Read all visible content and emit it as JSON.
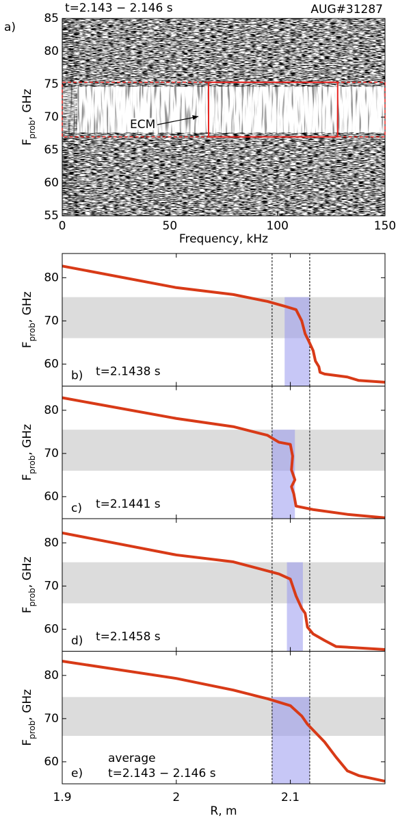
{
  "chart_data": [
    {
      "type": "spectrogram",
      "label": "a)",
      "title": "t=2.143 − 2.146 s",
      "subtitle": "AUG#31287",
      "annotation": "ECM",
      "xlabel": "Frequency, kHz",
      "ylabel": {
        "text": "F",
        "sub": "prob",
        "tail": ", GHz"
      },
      "xlim": [
        0,
        150
      ],
      "ylim": [
        55,
        85
      ],
      "xticks": [
        0,
        50,
        100,
        150
      ],
      "yticks": [
        55,
        60,
        65,
        70,
        75,
        80,
        85
      ],
      "ecm_band": [
        67,
        75.3
      ],
      "ecm_box": {
        "x": [
          68,
          128
        ],
        "y": [
          67,
          75.3
        ]
      },
      "color": "#e8231f"
    },
    {
      "type": "line",
      "label": "b)",
      "annotations": [
        "t=2.1438 s"
      ],
      "ylabel": {
        "text": "F",
        "sub": "prob",
        "tail": ", GHz"
      },
      "xlim": [
        1.9,
        2.183
      ],
      "ylim": [
        54.9,
        85.6
      ],
      "xticks": [
        1.9,
        2,
        2.1
      ],
      "yticks": [
        60,
        70,
        80
      ],
      "band": [
        66,
        75.5
      ],
      "highlight": {
        "x": [
          2.095,
          2.117
        ],
        "y": [
          54.9,
          75.5
        ]
      },
      "vlines": [
        2.084,
        2.117
      ],
      "series": [
        {
          "color": "#d83a17",
          "x": [
            1.9,
            2.0,
            2.05,
            2.08,
            2.095,
            2.105,
            2.11,
            2.113,
            2.116,
            2.12,
            2.122,
            2.125,
            2.126,
            2.13,
            2.15,
            2.16,
            2.183
          ],
          "values": [
            82.7,
            77.7,
            76.1,
            74.5,
            73.4,
            72.6,
            70.0,
            67.0,
            65.4,
            63.1,
            60.7,
            59.4,
            58.1,
            57.7,
            57.0,
            56.2,
            55.8
          ]
        }
      ]
    },
    {
      "type": "line",
      "label": "c)",
      "annotations": [
        "t=2.1441 s"
      ],
      "ylabel": {
        "text": "F",
        "sub": "prob",
        "tail": ", GHz"
      },
      "xlim": [
        1.9,
        2.183
      ],
      "ylim": [
        54.9,
        85.6
      ],
      "xticks": [
        1.9,
        2,
        2.1
      ],
      "yticks": [
        60,
        70,
        80
      ],
      "band": [
        66,
        75.5
      ],
      "highlight": {
        "x": [
          2.084,
          2.104
        ],
        "y": [
          54.9,
          75.5
        ]
      },
      "vlines": [
        2.084,
        2.117
      ],
      "series": [
        {
          "color": "#d83a17",
          "x": [
            1.9,
            2.0,
            2.05,
            2.08,
            2.09,
            2.1,
            2.102,
            2.101,
            2.104,
            2.101,
            2.103,
            2.105,
            2.12,
            2.15,
            2.183
          ],
          "values": [
            82.9,
            78.1,
            76.2,
            74.2,
            72.6,
            72.1,
            69.4,
            66.2,
            63.9,
            62.3,
            60.7,
            57.8,
            57.0,
            55.9,
            55.1
          ]
        }
      ]
    },
    {
      "type": "line",
      "label": "d)",
      "annotations": [
        "t=2.1458 s"
      ],
      "ylabel": {
        "text": "F",
        "sub": "prob",
        "tail": ", GHz"
      },
      "xlim": [
        1.9,
        2.183
      ],
      "ylim": [
        54.9,
        85.6
      ],
      "xticks": [
        1.9,
        2,
        2.1
      ],
      "yticks": [
        60,
        70,
        80
      ],
      "band": [
        66,
        75.5
      ],
      "highlight": {
        "x": [
          2.097,
          2.111
        ],
        "y": [
          54.9,
          75.5
        ]
      },
      "vlines": [
        2.084,
        2.117
      ],
      "series": [
        {
          "color": "#d83a17",
          "x": [
            1.9,
            2.0,
            2.05,
            2.09,
            2.1,
            2.105,
            2.11,
            2.113,
            2.115,
            2.12,
            2.13,
            2.14,
            2.183
          ],
          "values": [
            82.3,
            77.2,
            75.6,
            72.8,
            71.6,
            67.7,
            64.8,
            63.7,
            60.5,
            58.9,
            57.4,
            56.0,
            55.3
          ]
        }
      ]
    },
    {
      "type": "line",
      "label": "e)",
      "annotations": [
        "average",
        "t=2.143 − 2.146 s"
      ],
      "xlabel": "R, m",
      "ylabel": {
        "text": "F",
        "sub": "prob",
        "tail": ", GHz"
      },
      "xlim": [
        1.9,
        2.183
      ],
      "ylim": [
        54.9,
        85.6
      ],
      "xticks": [
        1.9,
        2,
        2.1
      ],
      "yticks": [
        60,
        70,
        80
      ],
      "band": [
        66,
        75
      ],
      "highlight": {
        "x": [
          2.084,
          2.117
        ],
        "y": [
          54.9,
          75
        ]
      },
      "vlines": [
        2.084,
        2.117
      ],
      "series": [
        {
          "color": "#d83a17",
          "x": [
            1.9,
            2.0,
            2.05,
            2.08,
            2.1,
            2.11,
            2.115,
            2.13,
            2.14,
            2.15,
            2.16,
            2.183
          ],
          "values": [
            83.3,
            79.3,
            76.6,
            74.6,
            73.0,
            70.6,
            68.7,
            64.6,
            61.1,
            57.9,
            56.8,
            55.5
          ]
        }
      ]
    }
  ]
}
